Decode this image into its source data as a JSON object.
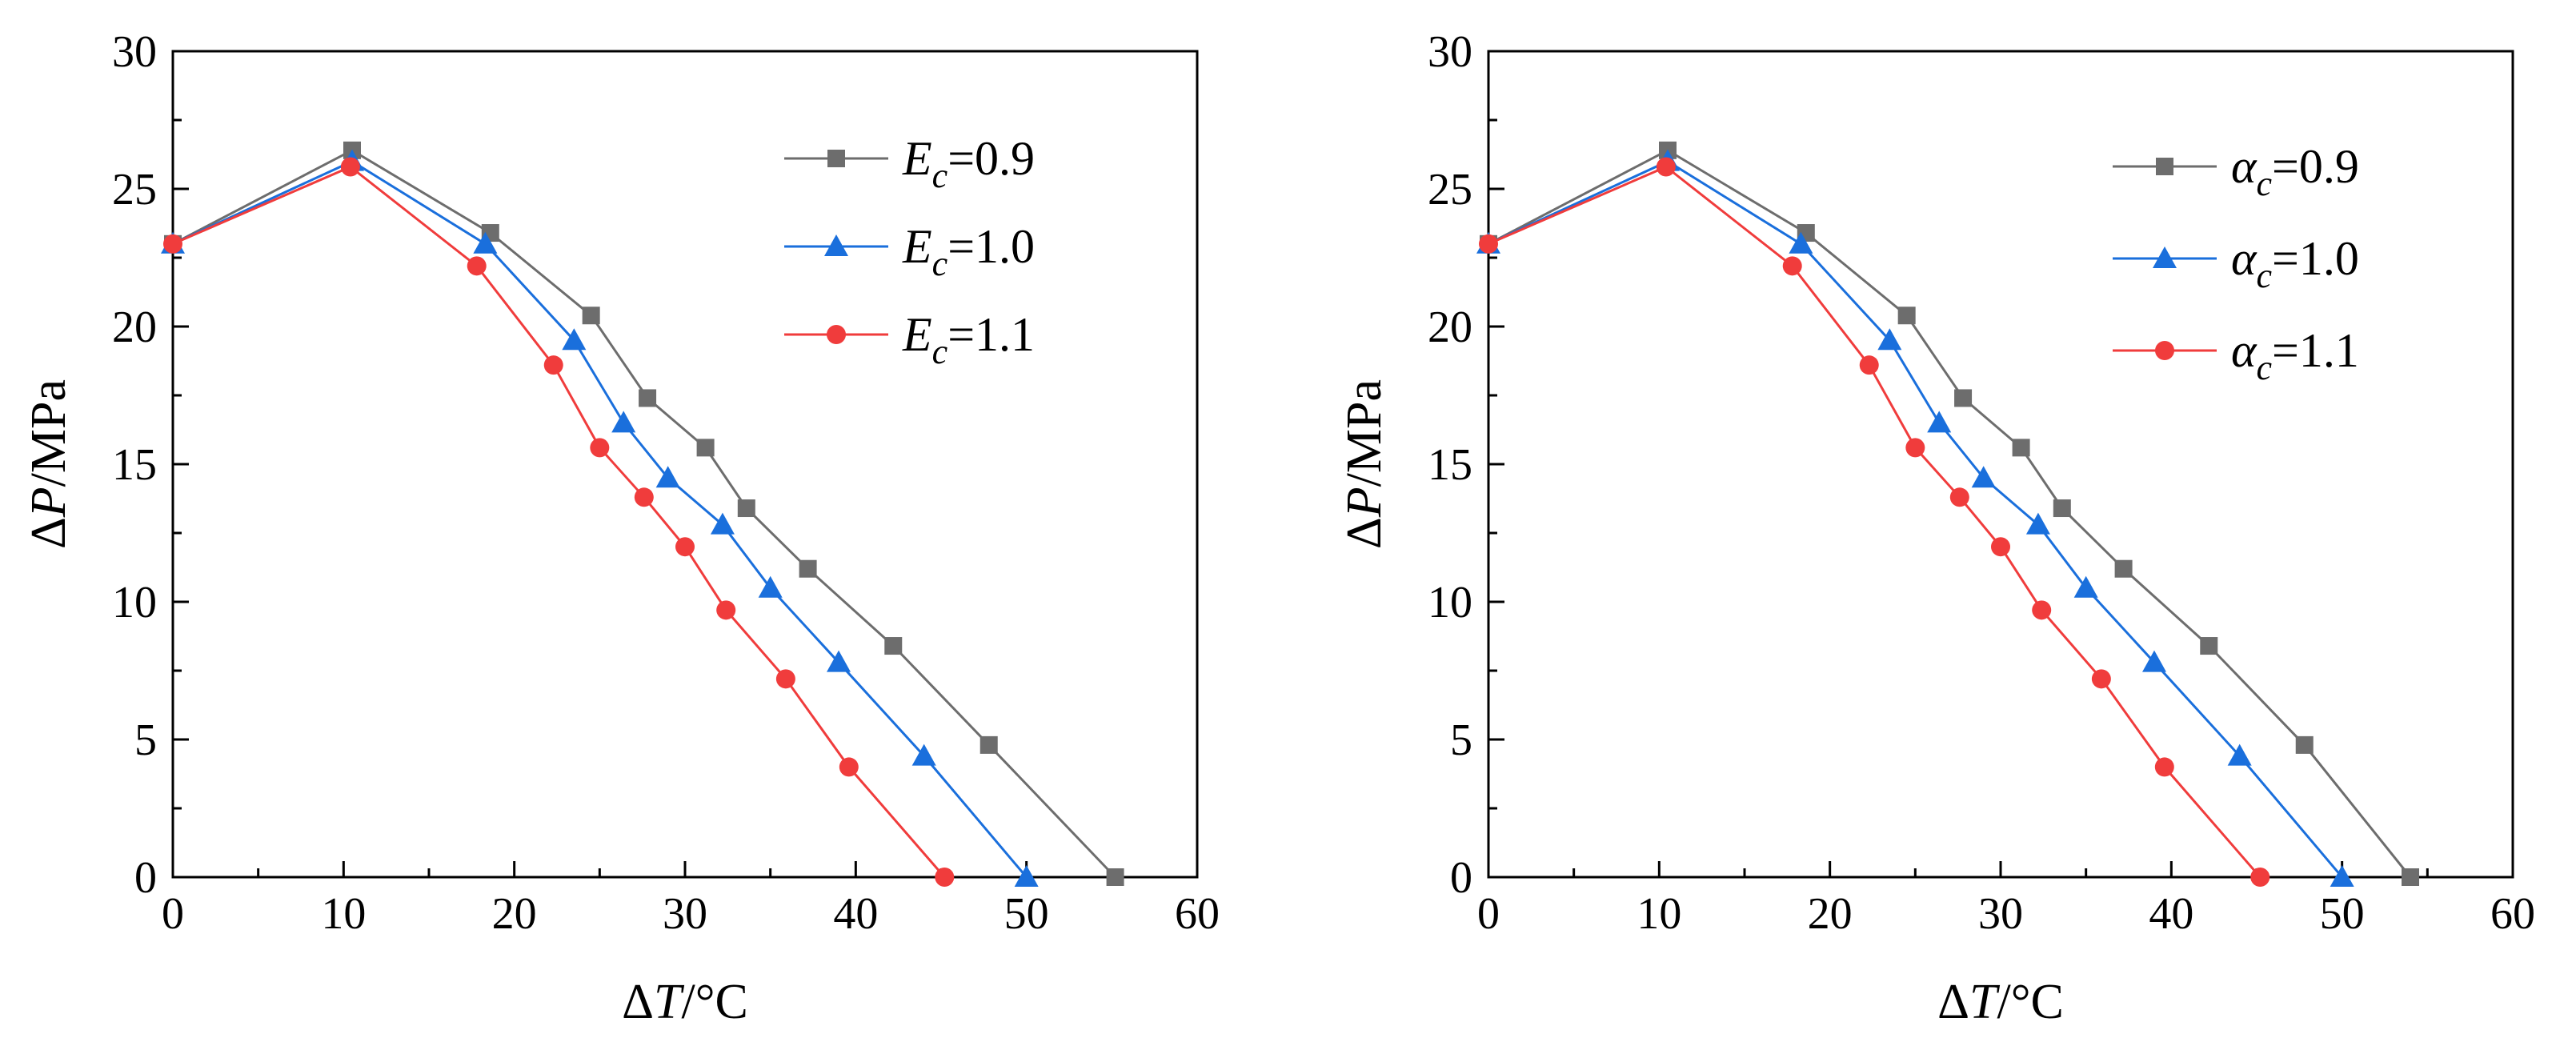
{
  "chart_data": [
    {
      "type": "line",
      "title": "",
      "xlabel": {
        "prefix": "Δ",
        "var": "T",
        "unit": "/°C"
      },
      "ylabel": {
        "prefix": "Δ",
        "var": "P",
        "unit": "/MPa"
      },
      "xlim": [
        0,
        60
      ],
      "ylim": [
        0,
        30
      ],
      "xticks": [
        0,
        10,
        20,
        30,
        40,
        50,
        60
      ],
      "yticks": [
        0,
        5,
        10,
        15,
        20,
        25,
        30
      ],
      "grid": false,
      "legend_position": "top-right",
      "series": [
        {
          "symbol": "E",
          "subscript": "c",
          "value_text": "=0.9",
          "color": "#6d6d6d",
          "marker": "square",
          "x": [
            0,
            10.5,
            18.6,
            24.5,
            27.8,
            31.2,
            33.6,
            37.2,
            42.2,
            47.8,
            55.2
          ],
          "y": [
            23.0,
            26.4,
            23.4,
            20.4,
            17.4,
            15.6,
            13.4,
            11.2,
            8.4,
            4.8,
            0.0
          ]
        },
        {
          "symbol": "E",
          "subscript": "c",
          "value_text": "=1.0",
          "color": "#1a6fdc",
          "marker": "triangle",
          "x": [
            0,
            10.5,
            18.3,
            23.5,
            26.4,
            29.0,
            32.2,
            35.0,
            39.0,
            44.0,
            50.0
          ],
          "y": [
            23.0,
            26.0,
            23.0,
            19.5,
            16.5,
            14.5,
            12.8,
            10.5,
            7.8,
            4.4,
            0.0
          ]
        },
        {
          "symbol": "E",
          "subscript": "c",
          "value_text": "=1.1",
          "color": "#f03c3c",
          "marker": "circle",
          "x": [
            0,
            10.4,
            17.8,
            22.3,
            25.0,
            27.6,
            30.0,
            32.4,
            35.9,
            39.6,
            45.2
          ],
          "y": [
            23.0,
            25.8,
            22.2,
            18.6,
            15.6,
            13.8,
            12.0,
            9.7,
            7.2,
            4.0,
            0.0
          ]
        }
      ]
    },
    {
      "type": "line",
      "title": "",
      "xlabel": {
        "prefix": "Δ",
        "var": "T",
        "unit": "/°C"
      },
      "ylabel": {
        "prefix": "Δ",
        "var": "P",
        "unit": "/MPa"
      },
      "xlim": [
        0,
        60
      ],
      "ylim": [
        0,
        30
      ],
      "xticks": [
        0,
        10,
        20,
        30,
        40,
        50,
        60
      ],
      "yticks": [
        0,
        5,
        10,
        15,
        20,
        25,
        30
      ],
      "grid": false,
      "legend_position": "top-right",
      "series": [
        {
          "symbol": "α",
          "subscript": "c",
          "value_text": "=0.9",
          "color": "#6d6d6d",
          "marker": "square",
          "x": [
            0,
            10.5,
            18.6,
            24.5,
            27.8,
            31.2,
            33.6,
            37.2,
            42.2,
            47.8,
            54.0
          ],
          "y": [
            23.0,
            26.4,
            23.4,
            20.4,
            17.4,
            15.6,
            13.4,
            11.2,
            8.4,
            4.8,
            0.0
          ]
        },
        {
          "symbol": "α",
          "subscript": "c",
          "value_text": "=1.0",
          "color": "#1a6fdc",
          "marker": "triangle",
          "x": [
            0,
            10.5,
            18.3,
            23.5,
            26.4,
            29.0,
            32.2,
            35.0,
            39.0,
            44.0,
            50.0
          ],
          "y": [
            23.0,
            26.0,
            23.0,
            19.5,
            16.5,
            14.5,
            12.8,
            10.5,
            7.8,
            4.4,
            0.0
          ]
        },
        {
          "symbol": "α",
          "subscript": "c",
          "value_text": "=1.1",
          "color": "#f03c3c",
          "marker": "circle",
          "x": [
            0,
            10.4,
            17.8,
            22.3,
            25.0,
            27.6,
            30.0,
            32.4,
            35.9,
            39.6,
            45.2
          ],
          "y": [
            23.0,
            25.8,
            22.2,
            18.6,
            15.6,
            13.8,
            12.0,
            9.7,
            7.2,
            4.0,
            0.0
          ]
        }
      ]
    }
  ]
}
